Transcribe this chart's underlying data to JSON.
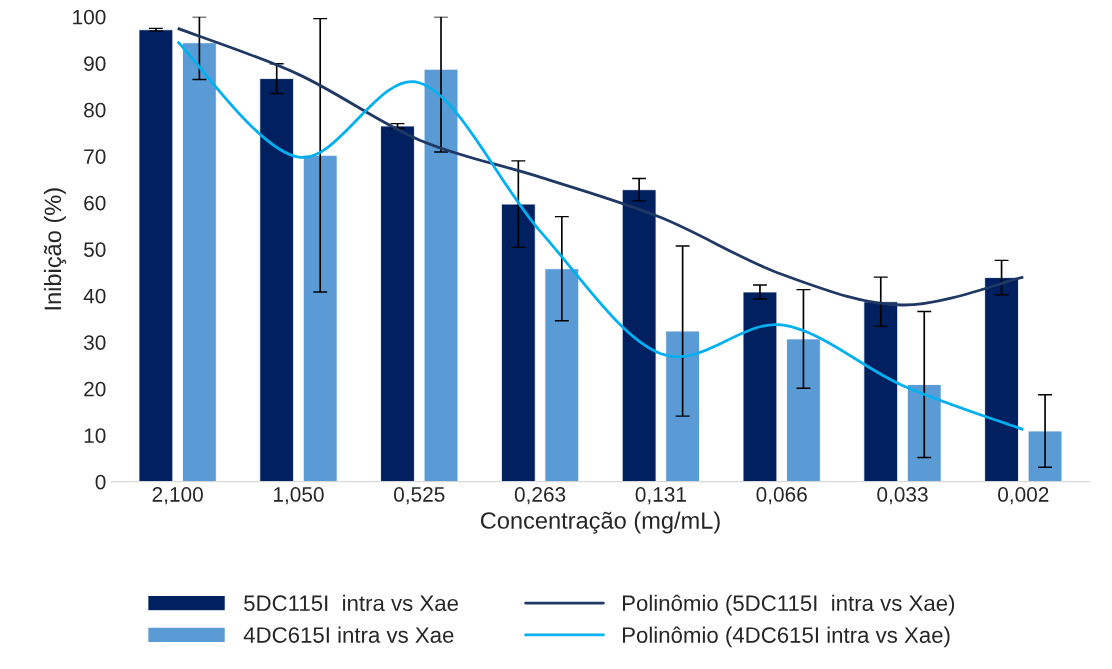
{
  "chart_data": {
    "type": "bar",
    "xlabel": "Concentração (mg/mL)",
    "ylabel": "Inibição (%)",
    "categories": [
      "2,100",
      "1,050",
      "0,525",
      "0,263",
      "0,131",
      "0,066",
      "0,033",
      "0,002"
    ],
    "ylim": [
      0,
      100
    ],
    "yticks": [
      0,
      10,
      20,
      30,
      40,
      50,
      60,
      70,
      80,
      90,
      100
    ],
    "grid": false,
    "legend": "bottom",
    "series": [
      {
        "name": "5DC115I  intra vs Xae",
        "color": "#002060",
        "values": [
          97.2,
          86.7,
          76.5,
          59.7,
          62.8,
          40.8,
          38.7,
          43.9
        ],
        "errors": [
          0.3,
          3.2,
          0.5,
          9.3,
          2.4,
          1.5,
          5.3,
          3.7
        ]
      },
      {
        "name": "4DC615I intra vs Xae",
        "color": "#5b9bd5",
        "values": [
          94.4,
          70.2,
          88.7,
          45.8,
          32.4,
          30.7,
          20.9,
          10.9
        ],
        "errors": [
          [
            86.5,
            100
          ],
          29.4,
          [
            70.9,
            100
          ],
          11.2,
          18.3,
          10.6,
          15.7,
          7.8
        ]
      },
      {
        "name": "Polinômio (5DC115I  intra vs Xae)",
        "type": "line",
        "color": "#203864",
        "values": [
          97.5,
          87.6,
          73.5,
          65.5,
          56.8,
          44.6,
          38.0,
          44.0
        ]
      },
      {
        "name": "Polinômio (4DC615I intra vs Xae)",
        "type": "line",
        "color": "#00b0f0",
        "values": [
          94.6,
          69.8,
          85.8,
          53.9,
          27.5,
          33.7,
          20.7,
          11.2
        ]
      }
    ]
  }
}
